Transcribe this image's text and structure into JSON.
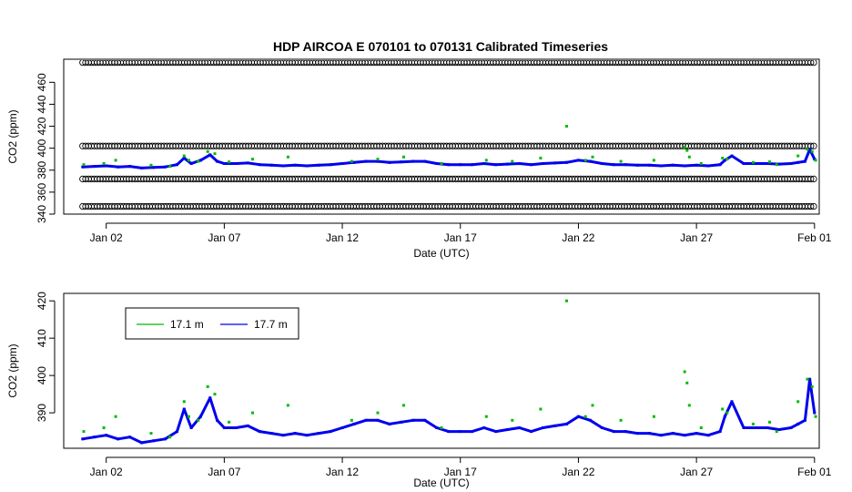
{
  "chart_data": [
    {
      "type": "scatter",
      "title": "HDP   AIRCOA  E   070101  to  070131   Calibrated Timeseries",
      "xlabel": "Date (UTC)",
      "ylabel": "CO2 (ppm)",
      "xlim": [
        -0.8,
        31.2
      ],
      "ylim": [
        340,
        481
      ],
      "x_ticks": [
        {
          "x": 1,
          "label": "Jan 02"
        },
        {
          "x": 6,
          "label": "Jan 07"
        },
        {
          "x": 11,
          "label": "Jan 12"
        },
        {
          "x": 16,
          "label": "Jan 17"
        },
        {
          "x": 21,
          "label": "Jan 22"
        },
        {
          "x": 26,
          "label": "Jan 27"
        },
        {
          "x": 31,
          "label": "Feb 01"
        }
      ],
      "y_ticks": [
        340,
        360,
        380,
        400,
        420,
        440,
        460
      ],
      "reference_series": [
        {
          "name": "",
          "color": "#000000",
          "marker": "open-circle",
          "x_range": [
            0,
            31
          ],
          "y": 478
        },
        {
          "name": "",
          "color": "#000000",
          "marker": "open-circle",
          "x_range": [
            0,
            31
          ],
          "y": 402
        },
        {
          "name": "",
          "color": "#000000",
          "marker": "open-circle",
          "x_range": [
            0,
            31
          ],
          "y": 372
        },
        {
          "name": "",
          "color": "#000000",
          "marker": "open-circle",
          "x_range": [
            0,
            31
          ],
          "y": 347
        }
      ],
      "series": [
        {
          "name": "17.7 m",
          "color": "#0000ee",
          "line": true,
          "x": [
            0,
            0.5,
            1,
            1.5,
            2,
            2.5,
            3,
            3.5,
            4,
            4.3,
            4.6,
            5,
            5.4,
            5.7,
            6,
            6.5,
            7,
            7.5,
            8,
            8.5,
            9,
            9.5,
            10,
            10.5,
            11,
            11.5,
            12,
            12.5,
            13,
            13.5,
            14,
            14.5,
            15,
            15.5,
            16,
            16.5,
            17,
            17.5,
            18,
            18.5,
            19,
            19.5,
            20,
            20.5,
            21,
            21.5,
            22,
            22.5,
            23,
            23.5,
            24,
            24.5,
            25,
            25.5,
            26,
            26.5,
            27,
            27.2,
            27.5,
            28,
            28.5,
            29,
            29.5,
            30,
            30.3,
            30.6,
            30.8,
            31
          ],
          "y": [
            383,
            383.5,
            384,
            383,
            383.5,
            382,
            382.5,
            383,
            385,
            391,
            386,
            389,
            394,
            388,
            386,
            386,
            386.5,
            385,
            384.5,
            384,
            384.5,
            384,
            384.5,
            385,
            386,
            387,
            388,
            388,
            387,
            387.5,
            388,
            388,
            386,
            385,
            385,
            385,
            386,
            385,
            385.5,
            386,
            385,
            386,
            386.5,
            387,
            389,
            388,
            386,
            385,
            385,
            384.5,
            384.5,
            384,
            384.5,
            384,
            384.5,
            384,
            385,
            389,
            393,
            386,
            386,
            386,
            385.5,
            386,
            387,
            388,
            399,
            390
          ]
        },
        {
          "name": "17.1 m",
          "color": "#00bb00",
          "line": false,
          "x": [
            0.05,
            0.9,
            1.4,
            2.9,
            3.7,
            4.3,
            4.5,
            4.9,
            5.3,
            5.6,
            6.2,
            7.2,
            8.7,
            11.4,
            12.5,
            13.6,
            15.2,
            17.1,
            18.2,
            19.4,
            20.5,
            21.3,
            21.6,
            22.8,
            24.2,
            25.5,
            25.6,
            25.7,
            26.2,
            27.1,
            27.3,
            28.4,
            29.1,
            29.4,
            30.3,
            30.7,
            30.9,
            31.05
          ],
          "y": [
            385,
            386,
            389,
            384.5,
            383.5,
            393,
            389,
            388,
            397,
            395,
            387.5,
            390,
            392,
            388,
            390,
            392,
            386,
            389,
            388,
            391,
            420,
            389,
            392,
            388,
            389,
            401,
            398,
            392,
            386,
            391,
            390,
            387,
            387.5,
            385,
            393,
            399,
            397,
            389
          ]
        }
      ]
    },
    {
      "type": "scatter",
      "title": "",
      "xlabel": "Date (UTC)",
      "ylabel": "CO2 (ppm)",
      "xlim": [
        -0.8,
        31.2
      ],
      "ylim": [
        380.5,
        422
      ],
      "x_ticks": [
        {
          "x": 1,
          "label": "Jan 02"
        },
        {
          "x": 6,
          "label": "Jan 07"
        },
        {
          "x": 11,
          "label": "Jan 12"
        },
        {
          "x": 16,
          "label": "Jan 17"
        },
        {
          "x": 21,
          "label": "Jan 22"
        },
        {
          "x": 26,
          "label": "Jan 27"
        },
        {
          "x": 31,
          "label": "Feb 01"
        }
      ],
      "y_ticks": [
        390,
        400,
        410,
        420
      ],
      "legend": {
        "placement": "top-left",
        "entries": [
          {
            "label": "17.1 m",
            "color": "#00bb00"
          },
          {
            "label": "17.7 m",
            "color": "#0000ee"
          }
        ]
      },
      "series": [
        {
          "name": "17.7 m",
          "color": "#0000ee",
          "line": true,
          "x": [
            0,
            0.5,
            1,
            1.5,
            2,
            2.5,
            3,
            3.5,
            4,
            4.3,
            4.6,
            5,
            5.4,
            5.7,
            6,
            6.5,
            7,
            7.5,
            8,
            8.5,
            9,
            9.5,
            10,
            10.5,
            11,
            11.5,
            12,
            12.5,
            13,
            13.5,
            14,
            14.5,
            15,
            15.5,
            16,
            16.5,
            17,
            17.5,
            18,
            18.5,
            19,
            19.5,
            20,
            20.5,
            21,
            21.5,
            22,
            22.5,
            23,
            23.5,
            24,
            24.5,
            25,
            25.5,
            26,
            26.5,
            27,
            27.2,
            27.5,
            28,
            28.5,
            29,
            29.5,
            30,
            30.3,
            30.6,
            30.8,
            31
          ],
          "y": [
            383,
            383.5,
            384,
            383,
            383.5,
            382,
            382.5,
            383,
            385,
            391,
            386,
            389,
            394,
            388,
            386,
            386,
            386.5,
            385,
            384.5,
            384,
            384.5,
            384,
            384.5,
            385,
            386,
            387,
            388,
            388,
            387,
            387.5,
            388,
            388,
            386,
            385,
            385,
            385,
            386,
            385,
            385.5,
            386,
            385,
            386,
            386.5,
            387,
            389,
            388,
            386,
            385,
            385,
            384.5,
            384.5,
            384,
            384.5,
            384,
            384.5,
            384,
            385,
            389,
            393,
            386,
            386,
            386,
            385.5,
            386,
            387,
            388,
            399,
            390
          ]
        },
        {
          "name": "17.1 m",
          "color": "#00bb00",
          "line": false,
          "x": [
            0.05,
            0.9,
            1.4,
            2.9,
            3.7,
            4.3,
            4.5,
            4.9,
            5.3,
            5.6,
            6.2,
            7.2,
            8.7,
            11.4,
            12.5,
            13.6,
            15.2,
            17.1,
            18.2,
            19.4,
            20.5,
            21.3,
            21.6,
            22.8,
            24.2,
            25.5,
            25.6,
            25.7,
            26.2,
            27.1,
            27.3,
            28.4,
            29.1,
            29.4,
            30.3,
            30.7,
            30.9,
            31.05
          ],
          "y": [
            385,
            386,
            389,
            384.5,
            383.5,
            393,
            389,
            388,
            397,
            395,
            387.5,
            390,
            392,
            388,
            390,
            392,
            386,
            389,
            388,
            391,
            420,
            389,
            392,
            388,
            389,
            401,
            398,
            392,
            386,
            391,
            390,
            387,
            387.5,
            385,
            393,
            399,
            397,
            389
          ]
        }
      ]
    }
  ]
}
